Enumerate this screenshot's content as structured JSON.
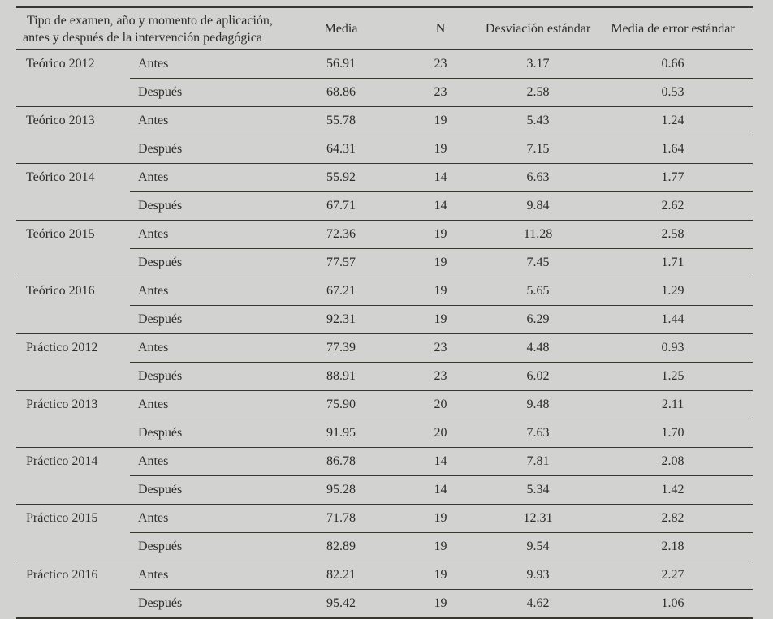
{
  "page": {
    "background_color": "#d2d2d0",
    "text_color": "#2c2c29",
    "rule_color": "#37372f"
  },
  "table": {
    "header": {
      "description_line1": "Tipo de examen, año y momento de aplicación,",
      "description_line2": "antes y después de la intervención pedagógica",
      "columns": [
        "Media",
        "N",
        "Desviación estándar",
        "Media de error estándar"
      ]
    },
    "groups": [
      {
        "label": "Teórico 2012",
        "rows": [
          {
            "moment": "Antes",
            "media": "56.91",
            "n": "23",
            "sd": "3.17",
            "sem": "0.66"
          },
          {
            "moment": "Después",
            "media": "68.86",
            "n": "23",
            "sd": "2.58",
            "sem": "0.53"
          }
        ]
      },
      {
        "label": "Teórico 2013",
        "rows": [
          {
            "moment": "Antes",
            "media": "55.78",
            "n": "19",
            "sd": "5.43",
            "sem": "1.24"
          },
          {
            "moment": "Después",
            "media": "64.31",
            "n": "19",
            "sd": "7.15",
            "sem": "1.64"
          }
        ]
      },
      {
        "label": "Teórico 2014",
        "rows": [
          {
            "moment": "Antes",
            "media": "55.92",
            "n": "14",
            "sd": "6.63",
            "sem": "1.77"
          },
          {
            "moment": "Después",
            "media": "67.71",
            "n": "14",
            "sd": "9.84",
            "sem": "2.62"
          }
        ]
      },
      {
        "label": "Teórico 2015",
        "rows": [
          {
            "moment": "Antes",
            "media": "72.36",
            "n": "19",
            "sd": "11.28",
            "sem": "2.58"
          },
          {
            "moment": "Después",
            "media": "77.57",
            "n": "19",
            "sd": "7.45",
            "sem": "1.71"
          }
        ]
      },
      {
        "label": "Teórico 2016",
        "rows": [
          {
            "moment": "Antes",
            "media": "67.21",
            "n": "19",
            "sd": "5.65",
            "sem": "1.29"
          },
          {
            "moment": "Después",
            "media": "92.31",
            "n": "19",
            "sd": "6.29",
            "sem": "1.44"
          }
        ]
      },
      {
        "label": "Práctico 2012",
        "rows": [
          {
            "moment": "Antes",
            "media": "77.39",
            "n": "23",
            "sd": "4.48",
            "sem": "0.93"
          },
          {
            "moment": "Después",
            "media": "88.91",
            "n": "23",
            "sd": "6.02",
            "sem": "1.25"
          }
        ]
      },
      {
        "label": "Práctico 2013",
        "rows": [
          {
            "moment": "Antes",
            "media": "75.90",
            "n": "20",
            "sd": "9.48",
            "sem": "2.11"
          },
          {
            "moment": "Después",
            "media": "91.95",
            "n": "20",
            "sd": "7.63",
            "sem": "1.70"
          }
        ]
      },
      {
        "label": "Práctico 2014",
        "rows": [
          {
            "moment": "Antes",
            "media": "86.78",
            "n": "14",
            "sd": "7.81",
            "sem": "2.08"
          },
          {
            "moment": "Después",
            "media": "95.28",
            "n": "14",
            "sd": "5.34",
            "sem": "1.42"
          }
        ]
      },
      {
        "label": "Práctico 2015",
        "rows": [
          {
            "moment": "Antes",
            "media": "71.78",
            "n": "19",
            "sd": "12.31",
            "sem": "2.82"
          },
          {
            "moment": "Después",
            "media": "82.89",
            "n": "19",
            "sd": "9.54",
            "sem": "2.18"
          }
        ]
      },
      {
        "label": "Práctico 2016",
        "rows": [
          {
            "moment": "Antes",
            "media": "82.21",
            "n": "19",
            "sd": "9.93",
            "sem": "2.27"
          },
          {
            "moment": "Después",
            "media": "95.42",
            "n": "19",
            "sd": "4.62",
            "sem": "1.06"
          }
        ]
      }
    ]
  }
}
